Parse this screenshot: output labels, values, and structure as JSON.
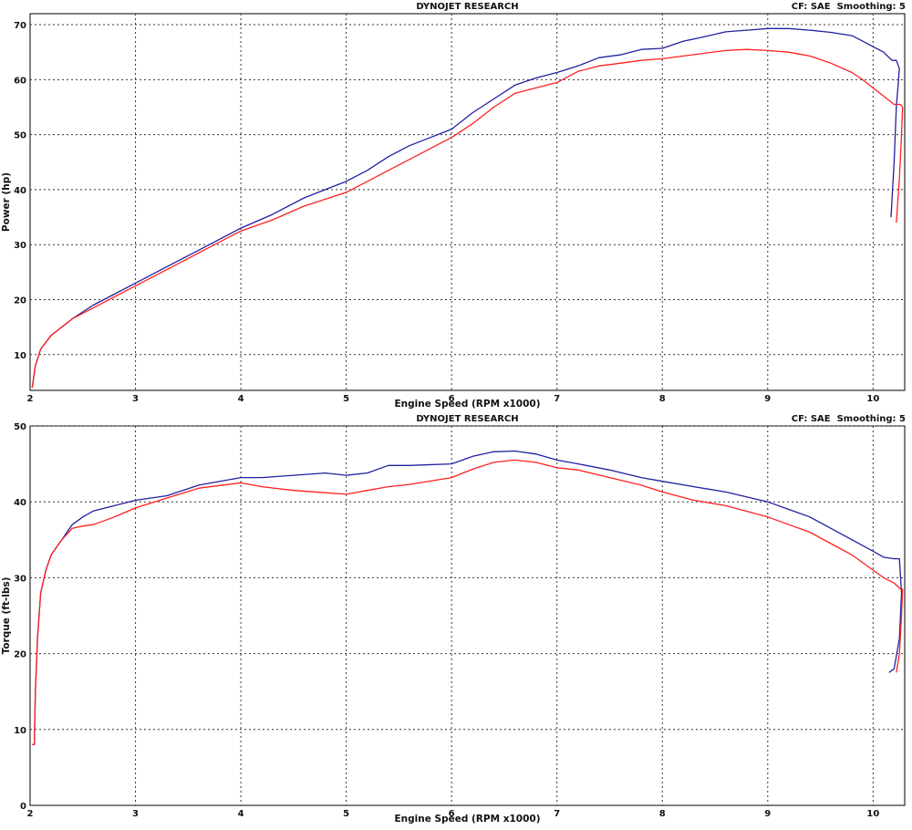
{
  "chart_data": [
    {
      "type": "line",
      "title": "DYNOJET RESEARCH",
      "subtitle": "CF: SAE  Smoothing: 5",
      "xlabel": "Engine Speed (RPM x1000)",
      "ylabel": "Power (hp)",
      "xlim": [
        2,
        10.3
      ],
      "ylim": [
        3.5,
        72
      ],
      "x_ticks": [
        "2",
        "3",
        "4",
        "5",
        "6",
        "7",
        "8",
        "9",
        "10"
      ],
      "y_ticks": [
        "10",
        "20",
        "30",
        "40",
        "50",
        "60",
        "70"
      ],
      "grid": true,
      "series": [
        {
          "color": "#2020a0",
          "x": [
            2.02,
            2.05,
            2.1,
            2.2,
            2.4,
            2.6,
            2.8,
            3.0,
            3.3,
            3.6,
            4.0,
            4.3,
            4.6,
            5.0,
            5.2,
            5.4,
            5.6,
            5.8,
            6.0,
            6.2,
            6.4,
            6.6,
            6.8,
            7.0,
            7.2,
            7.4,
            7.6,
            7.8,
            8.0,
            8.2,
            8.4,
            8.6,
            8.8,
            9.0,
            9.2,
            9.4,
            9.6,
            9.8,
            9.9,
            10.0,
            10.1,
            10.18,
            10.22,
            10.25,
            10.22,
            10.2,
            10.17
          ],
          "y": [
            4,
            8,
            11,
            13.5,
            16.5,
            19,
            21,
            23,
            26,
            29,
            33,
            35.5,
            38.5,
            41.5,
            43.5,
            46,
            48,
            49.5,
            51,
            54,
            56.5,
            59,
            60.3,
            61.3,
            62.5,
            64,
            64.5,
            65.5,
            65.7,
            67,
            67.8,
            68.7,
            69,
            69.3,
            69.3,
            69,
            68.6,
            68,
            67,
            66,
            65,
            63.5,
            63.5,
            62,
            55,
            45,
            35
          ]
        },
        {
          "color": "#ff2020",
          "x": [
            2.02,
            2.05,
            2.1,
            2.2,
            2.4,
            2.6,
            2.8,
            3.0,
            3.3,
            3.6,
            4.0,
            4.3,
            4.6,
            5.0,
            5.2,
            5.4,
            5.6,
            5.8,
            6.0,
            6.2,
            6.4,
            6.6,
            6.8,
            7.0,
            7.2,
            7.4,
            7.6,
            7.8,
            8.0,
            8.2,
            8.4,
            8.6,
            8.8,
            9.0,
            9.2,
            9.4,
            9.6,
            9.8,
            9.9,
            10.0,
            10.1,
            10.2,
            10.26,
            10.28,
            10.27,
            10.25,
            10.22
          ],
          "y": [
            4,
            8,
            11,
            13.5,
            16.5,
            18.5,
            20.5,
            22.5,
            25.5,
            28.5,
            32.5,
            34.5,
            37,
            39.5,
            41.5,
            43.5,
            45.5,
            47.5,
            49.5,
            52,
            55,
            57.5,
            58.5,
            59.5,
            61.5,
            62.5,
            63,
            63.5,
            63.8,
            64.3,
            64.8,
            65.3,
            65.5,
            65.3,
            65,
            64.3,
            63,
            61.3,
            60,
            58.5,
            57,
            55.5,
            55.5,
            55,
            50,
            42,
            34
          ]
        }
      ]
    },
    {
      "type": "line",
      "title": "DYNOJET RESEARCH",
      "subtitle": "CF: SAE  Smoothing: 5",
      "xlabel": "Engine Speed (RPM x1000)",
      "ylabel": "Torque (ft-lbs)",
      "xlim": [
        2,
        10.3
      ],
      "ylim": [
        0,
        50
      ],
      "x_ticks": [
        "2",
        "3",
        "4",
        "5",
        "6",
        "7",
        "8",
        "9",
        "10"
      ],
      "y_ticks": [
        "0",
        "10",
        "20",
        "30",
        "40",
        "50"
      ],
      "grid": true,
      "series": [
        {
          "color": "#2020a0",
          "x": [
            2.02,
            2.04,
            2.05,
            2.07,
            2.1,
            2.15,
            2.2,
            2.3,
            2.4,
            2.5,
            2.6,
            2.8,
            3.0,
            3.3,
            3.6,
            4.0,
            4.2,
            4.5,
            4.8,
            5.0,
            5.2,
            5.4,
            5.6,
            6.0,
            6.2,
            6.4,
            6.6,
            6.8,
            7.0,
            7.2,
            7.5,
            7.8,
            8.0,
            8.3,
            8.6,
            9.0,
            9.2,
            9.4,
            9.6,
            9.8,
            10.0,
            10.1,
            10.2,
            10.25,
            10.27,
            10.25,
            10.2,
            10.15
          ],
          "y": [
            8,
            8,
            15,
            22,
            28,
            31,
            33,
            35,
            37,
            38,
            38.8,
            39.5,
            40.2,
            40.8,
            42.2,
            43.2,
            43.2,
            43.5,
            43.8,
            43.5,
            43.8,
            44.8,
            44.8,
            45,
            46,
            46.6,
            46.7,
            46.3,
            45.5,
            45,
            44.2,
            43.2,
            42.7,
            42,
            41.3,
            40,
            39,
            38,
            36.5,
            35,
            33.5,
            32.7,
            32.5,
            32.5,
            28,
            22,
            18,
            17.5
          ]
        },
        {
          "color": "#ff2020",
          "x": [
            2.02,
            2.04,
            2.05,
            2.07,
            2.1,
            2.15,
            2.2,
            2.3,
            2.4,
            2.5,
            2.6,
            2.8,
            3.0,
            3.3,
            3.6,
            4.0,
            4.2,
            4.5,
            4.8,
            5.0,
            5.2,
            5.4,
            5.6,
            6.0,
            6.2,
            6.4,
            6.6,
            6.8,
            7.0,
            7.2,
            7.5,
            7.8,
            8.0,
            8.3,
            8.6,
            9.0,
            9.2,
            9.4,
            9.6,
            9.8,
            10.0,
            10.1,
            10.2,
            10.26,
            10.28,
            10.27,
            10.25,
            10.22
          ],
          "y": [
            8,
            8,
            15,
            22,
            28,
            31,
            33,
            35,
            36.5,
            36.8,
            37,
            38,
            39.2,
            40.5,
            41.8,
            42.5,
            42,
            41.5,
            41.2,
            41,
            41.5,
            42,
            42.3,
            43.2,
            44.3,
            45.2,
            45.5,
            45.2,
            44.5,
            44.2,
            43.2,
            42.2,
            41.3,
            40.2,
            39.5,
            38,
            37,
            36,
            34.5,
            33,
            31,
            30,
            29.3,
            28.5,
            28.5,
            25,
            20,
            17.5
          ]
        }
      ]
    }
  ]
}
